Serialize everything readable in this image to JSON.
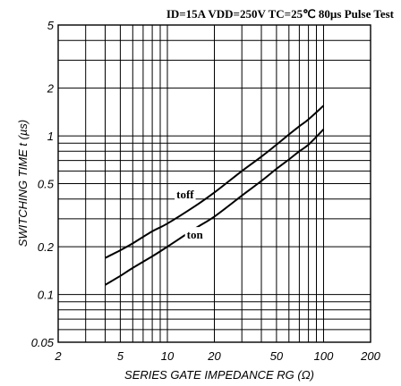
{
  "chart_data": {
    "type": "line",
    "conditions": "ID=15A  VDD=250V  TC=25℃  80µs Pulse Test",
    "xlabel": "SERIES GATE IMPEDANCE  RG (Ω)",
    "ylabel": "SWITCHING TIME  t (µs)",
    "x_scale": "log",
    "y_scale": "log",
    "xlim": [
      2,
      200
    ],
    "ylim": [
      0.05,
      5
    ],
    "x_tick_labels": [
      {
        "value": 2,
        "label": "2"
      },
      {
        "value": 5,
        "label": "5"
      },
      {
        "value": 10,
        "label": "10"
      },
      {
        "value": 20,
        "label": "20"
      },
      {
        "value": 50,
        "label": "50"
      },
      {
        "value": 100,
        "label": "100"
      },
      {
        "value": 200,
        "label": "200"
      }
    ],
    "y_tick_labels": [
      {
        "value": 0.05,
        "label": "0.05"
      },
      {
        "value": 0.1,
        "label": "0.1"
      },
      {
        "value": 0.2,
        "label": "0.2"
      },
      {
        "value": 0.5,
        "label": "0.5"
      },
      {
        "value": 1,
        "label": "1"
      },
      {
        "value": 2,
        "label": "2"
      },
      {
        "value": 5,
        "label": "5"
      }
    ],
    "x_grid": [
      3,
      4,
      5,
      6,
      7,
      8,
      9,
      10,
      20,
      30,
      40,
      50,
      60,
      70,
      80,
      90,
      100
    ],
    "y_grid": [
      0.06,
      0.07,
      0.08,
      0.09,
      0.1,
      0.2,
      0.3,
      0.4,
      0.5,
      0.6,
      0.7,
      0.8,
      0.9,
      1,
      2,
      3,
      4
    ],
    "grid": true,
    "series": [
      {
        "name": "toff",
        "x": [
          4,
          5,
          6,
          8,
          10,
          15,
          20,
          30,
          40,
          50,
          60,
          70,
          80,
          100
        ],
        "y": [
          0.17,
          0.19,
          0.21,
          0.25,
          0.28,
          0.36,
          0.44,
          0.6,
          0.74,
          0.88,
          1.02,
          1.15,
          1.27,
          1.55
        ]
      },
      {
        "name": "ton",
        "x": [
          4,
          5,
          6,
          8,
          10,
          15,
          20,
          30,
          40,
          50,
          60,
          70,
          80,
          100
        ],
        "y": [
          0.115,
          0.131,
          0.147,
          0.174,
          0.2,
          0.26,
          0.31,
          0.42,
          0.52,
          0.62,
          0.71,
          0.8,
          0.88,
          1.1
        ]
      }
    ],
    "series_labels": [
      {
        "name": "toff",
        "x": 13,
        "y": 0.43
      },
      {
        "name": "ton",
        "x": 15,
        "y": 0.24
      }
    ]
  }
}
